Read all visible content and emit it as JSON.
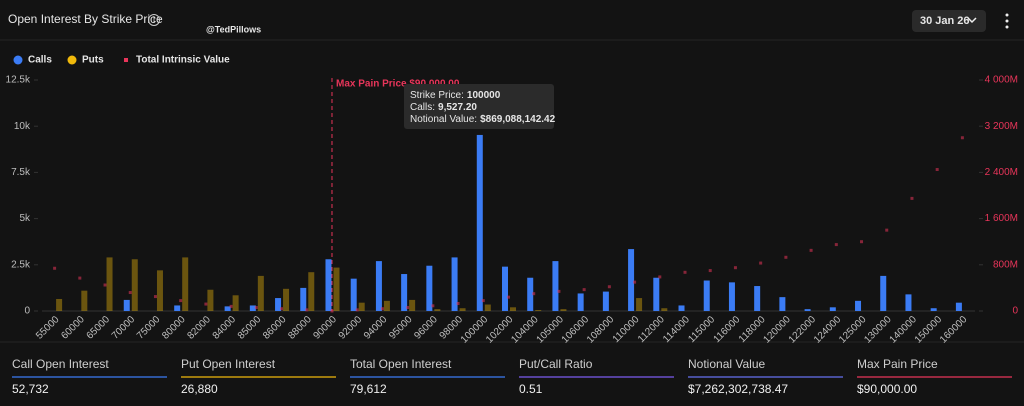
{
  "header": {
    "title": "Open Interest By Strike Price",
    "watermark": "@TedPillows",
    "date": "30 Jan 26"
  },
  "chart_data": {
    "type": "bar",
    "categories": [
      "55000",
      "60000",
      "65000",
      "70000",
      "75000",
      "80000",
      "82000",
      "84000",
      "85000",
      "86000",
      "88000",
      "90000",
      "92000",
      "94000",
      "95000",
      "96000",
      "98000",
      "100000",
      "102000",
      "104000",
      "105000",
      "106000",
      "108000",
      "110000",
      "112000",
      "114000",
      "115000",
      "116000",
      "118000",
      "120000",
      "122000",
      "124000",
      "125000",
      "130000",
      "140000",
      "150000",
      "160000"
    ],
    "series": [
      {
        "name": "Calls",
        "color": "#3b7cf5",
        "values": [
          0,
          0,
          0,
          600,
          0,
          300,
          0,
          250,
          300,
          700,
          1250,
          2800,
          1750,
          2700,
          2000,
          2450,
          2900,
          9527.2,
          2400,
          1800,
          2700,
          950,
          1050,
          3350,
          1800,
          300,
          1650,
          1550,
          1350,
          750,
          100,
          200,
          550,
          1900,
          900,
          150,
          450
        ]
      },
      {
        "name": "Puts",
        "color": "#f0b90b",
        "values": [
          650,
          1100,
          2900,
          2800,
          2200,
          2900,
          1150,
          850,
          1900,
          1200,
          2100,
          2350,
          450,
          550,
          600,
          100,
          150,
          350,
          200,
          50,
          100,
          0,
          0,
          700,
          150,
          0,
          0,
          0,
          0,
          0,
          0,
          0,
          0,
          0,
          0,
          0,
          0
        ]
      },
      {
        "name": "Total Intrinsic Value",
        "color": "#e8355a",
        "axis": "y2",
        "values": [
          740,
          570,
          450,
          320,
          250,
          180,
          120,
          80,
          60,
          40,
          20,
          0,
          20,
          40,
          60,
          90,
          130,
          180,
          240,
          300,
          340,
          370,
          420,
          500,
          590,
          670,
          700,
          750,
          830,
          930,
          1050,
          1150,
          1200,
          1400,
          1950,
          2450,
          3000
        ]
      }
    ],
    "ylim": [
      0,
      12500
    ],
    "yticks": [
      0,
      {
        "value": 2500,
        "label": "2.5k"
      },
      {
        "value": 5000,
        "label": "5k"
      },
      {
        "value": 7500,
        "label": "7.5k"
      },
      {
        "value": 10000,
        "label": "10k"
      },
      {
        "value": 12500,
        "label": "12.5k"
      }
    ],
    "y2lim": [
      0,
      4000
    ],
    "y2ticks": [
      0,
      {
        "value": 800,
        "label": "800M"
      },
      {
        "value": 1600,
        "label": "1 600M"
      },
      {
        "value": 2400,
        "label": "2 400M"
      },
      {
        "value": 3200,
        "label": "3 200M"
      },
      {
        "value": 4000,
        "label": "4 000M"
      }
    ],
    "grid": false,
    "legend": "top-left",
    "annotation": {
      "text": "Max Pain Price $90,000.00",
      "x": "90000"
    },
    "tooltip": [
      {
        "label": "Strike Price:",
        "value": "100000"
      },
      {
        "label": "Calls:",
        "value": "9,527.20"
      },
      {
        "label": "Notional Value:",
        "value": "$869,088,142.42"
      }
    ]
  },
  "stats": [
    {
      "label": "Call Open Interest",
      "value": "52,732",
      "color": "#3b7cf5"
    },
    {
      "label": "Put Open Interest",
      "value": "26,880",
      "color": "#f0b90b"
    },
    {
      "label": "Total Open Interest",
      "value": "79,612",
      "color": "#3b7cf5"
    },
    {
      "label": "Put/Call Ratio",
      "value": "0.51",
      "color": "#7b5cf0"
    },
    {
      "label": "Notional Value",
      "value": "$7,262,302,738.47",
      "color": "#6470f0"
    },
    {
      "label": "Max Pain Price",
      "value": "$90,000.00",
      "color": "#e8355a"
    }
  ]
}
